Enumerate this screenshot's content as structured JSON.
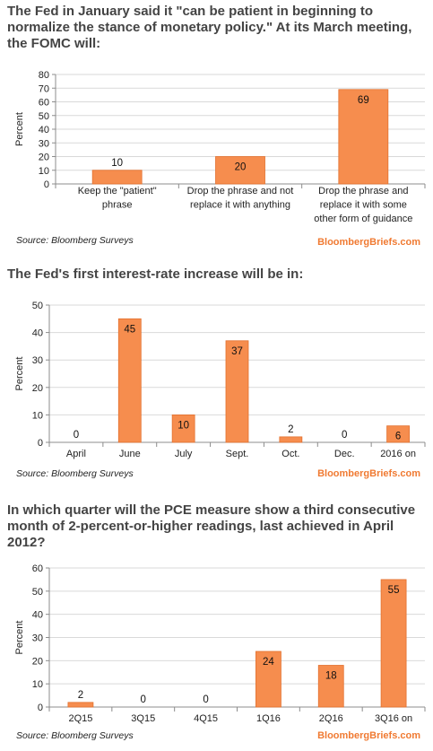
{
  "colors": {
    "bar": "#f68d4e",
    "bar_stroke": "#e3712f",
    "grid": "#d9d9d9",
    "axis": "#8c8c8c",
    "title": "#444444",
    "brand": "#f07a32"
  },
  "chart_data": [
    {
      "type": "bar",
      "title": "The Fed in January said it \"can be patient in beginning to normalize the stance of monetary policy.\" At its March meeting, the FOMC will:",
      "categories": [
        [
          "Keep the \"patient\"",
          "phrase"
        ],
        [
          "Drop the phrase and not",
          "replace it with anything"
        ],
        [
          "Drop the phrase and",
          "replace it with some",
          "other form of guidance"
        ]
      ],
      "values": [
        10,
        20,
        69
      ],
      "data_labels": [
        "10",
        "20",
        "69"
      ],
      "ylabel": "Percent",
      "ylim": [
        0,
        80
      ],
      "yticks": [
        0,
        10,
        20,
        30,
        40,
        50,
        60,
        70,
        80
      ],
      "grid": true,
      "source": "Source: Bloomberg Surveys",
      "brand": "BloombergBriefs.com"
    },
    {
      "type": "bar",
      "title": "The Fed's first interest-rate increase will be in:",
      "categories": [
        [
          "April"
        ],
        [
          "June"
        ],
        [
          "July"
        ],
        [
          "Sept."
        ],
        [
          "Oct."
        ],
        [
          "Dec."
        ],
        [
          "2016 on"
        ]
      ],
      "values": [
        0,
        45,
        10,
        37,
        2,
        0,
        6
      ],
      "data_labels": [
        "0",
        "45",
        "10",
        "37",
        "2",
        "0",
        "6"
      ],
      "ylabel": "Percent",
      "ylim": [
        0,
        50
      ],
      "yticks": [
        0,
        10,
        20,
        30,
        40,
        50
      ],
      "grid": true,
      "source": "Source: Bloomberg Surveys",
      "brand": "BloombergBriefs.com"
    },
    {
      "type": "bar",
      "title": "In which quarter will the PCE measure show a third consecutive month of 2-percent-or-higher readings, last achieved in April 2012?",
      "categories": [
        [
          "2Q15"
        ],
        [
          "3Q15"
        ],
        [
          "4Q15"
        ],
        [
          "1Q16"
        ],
        [
          "2Q16"
        ],
        [
          "3Q16 on"
        ]
      ],
      "values": [
        2,
        0,
        0,
        24,
        18,
        55
      ],
      "data_labels": [
        "2",
        "0",
        "0",
        "24",
        "18",
        "55"
      ],
      "ylabel": "Percent",
      "ylim": [
        0,
        60
      ],
      "yticks": [
        0,
        10,
        20,
        30,
        40,
        50,
        60
      ],
      "grid": true,
      "source": "Source: Bloomberg Surveys",
      "brand": "BloombergBriefs.com"
    }
  ]
}
